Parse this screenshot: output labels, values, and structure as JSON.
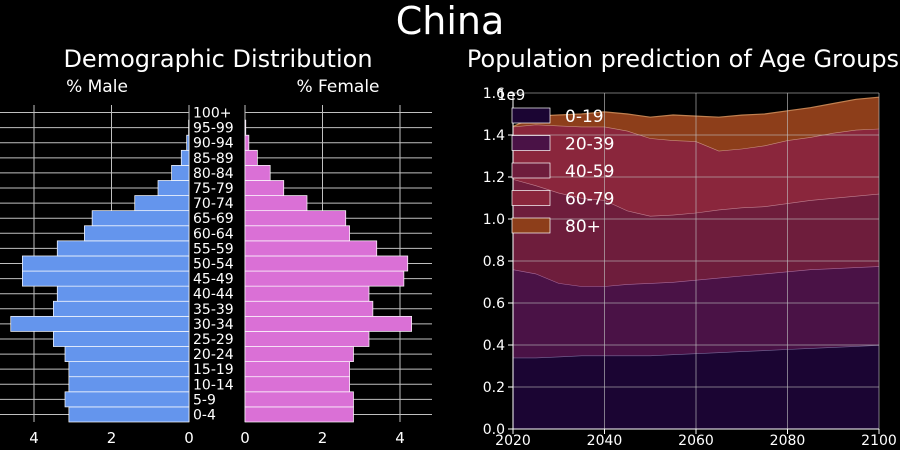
{
  "figure": {
    "title": "China",
    "colors": {
      "background": "#000000",
      "male": "#6495ed",
      "female": "#da70d6",
      "grid": "#bfbfbf",
      "area": [
        "#1b0533",
        "#4a1246",
        "#6e1d3c",
        "#8a263c",
        "#8d3e1a"
      ],
      "area_lines": [
        "#7a6a9a",
        "#a86a9a",
        "#c08090",
        "#c89080",
        "#c08050"
      ]
    }
  },
  "chart_data": [
    {
      "type": "bar",
      "orientation": "horizontal",
      "title": "Demographic Distribution",
      "male_label": "% Male",
      "female_label": "% Female",
      "categories": [
        "0-4",
        "5-9",
        "10-14",
        "15-19",
        "20-24",
        "25-29",
        "30-34",
        "35-39",
        "40-44",
        "45-49",
        "50-54",
        "55-59",
        "60-64",
        "65-69",
        "70-74",
        "75-79",
        "80-84",
        "85-89",
        "90-94",
        "95-99",
        "100+"
      ],
      "male": [
        3.1,
        3.2,
        3.1,
        3.1,
        3.2,
        3.5,
        4.6,
        3.5,
        3.4,
        4.3,
        4.3,
        3.4,
        2.7,
        2.5,
        1.4,
        0.8,
        0.45,
        0.2,
        0.06,
        0.01,
        0.0
      ],
      "female": [
        2.8,
        2.8,
        2.7,
        2.7,
        2.8,
        3.2,
        4.3,
        3.3,
        3.2,
        4.1,
        4.2,
        3.4,
        2.7,
        2.6,
        1.6,
        1.0,
        0.65,
        0.32,
        0.1,
        0.02,
        0.0
      ],
      "xlim": [
        0,
        5
      ],
      "xticks": [
        0,
        2,
        4
      ]
    },
    {
      "type": "area",
      "title": "Population prediction of Age Groups",
      "offset_label": "1e9",
      "x": [
        2020,
        2025,
        2030,
        2035,
        2040,
        2045,
        2050,
        2055,
        2060,
        2065,
        2070,
        2075,
        2080,
        2085,
        2090,
        2095,
        2100
      ],
      "series": [
        {
          "name": "0-19",
          "values": [
            0.34,
            0.34,
            0.345,
            0.35,
            0.35,
            0.35,
            0.35,
            0.355,
            0.36,
            0.365,
            0.37,
            0.375,
            0.38,
            0.385,
            0.39,
            0.395,
            0.4
          ]
        },
        {
          "name": "20-39",
          "values": [
            0.42,
            0.4,
            0.35,
            0.33,
            0.33,
            0.34,
            0.345,
            0.345,
            0.35,
            0.355,
            0.36,
            0.365,
            0.37,
            0.375,
            0.375,
            0.375,
            0.375
          ]
        },
        {
          "name": "40-59",
          "values": [
            0.43,
            0.42,
            0.43,
            0.42,
            0.41,
            0.35,
            0.32,
            0.32,
            0.32,
            0.325,
            0.325,
            0.32,
            0.325,
            0.33,
            0.335,
            0.34,
            0.345
          ]
        },
        {
          "name": "60-79",
          "values": [
            0.25,
            0.29,
            0.32,
            0.34,
            0.35,
            0.38,
            0.37,
            0.355,
            0.34,
            0.28,
            0.28,
            0.29,
            0.3,
            0.3,
            0.31,
            0.315,
            0.31
          ]
        },
        {
          "name": "80+",
          "values": [
            0.0,
            0.04,
            0.05,
            0.06,
            0.07,
            0.08,
            0.1,
            0.12,
            0.12,
            0.16,
            0.16,
            0.15,
            0.14,
            0.14,
            0.14,
            0.145,
            0.15
          ]
        }
      ],
      "xlim": [
        2020,
        2100
      ],
      "ylim": [
        0,
        1.6
      ],
      "xticks": [
        2020,
        2040,
        2060,
        2080,
        2100
      ],
      "yticks": [
        "0.0",
        "0.2",
        "0.4",
        "0.6",
        "0.8",
        "1.0",
        "1.2",
        "1.4",
        "1.6"
      ],
      "legend_position": "top-left"
    }
  ]
}
